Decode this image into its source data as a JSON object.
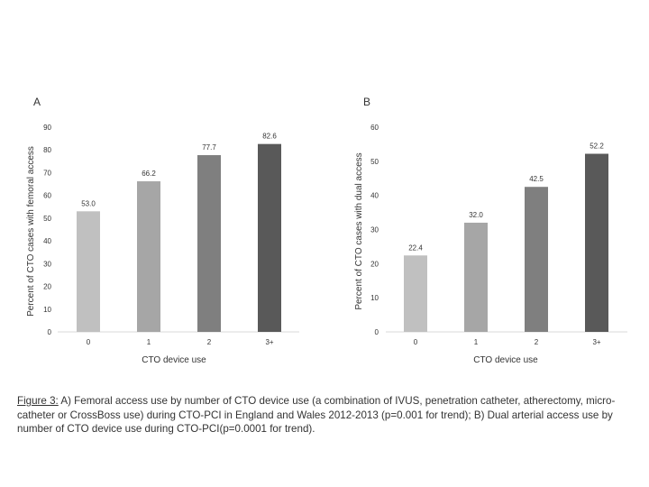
{
  "chart_data": [
    {
      "type": "bar",
      "panel_label": "A",
      "categories": [
        "0",
        "1",
        "2",
        "3+"
      ],
      "values": [
        53.0,
        66.2,
        77.7,
        82.6
      ],
      "value_labels": [
        "53.0",
        "66.2",
        "77.7",
        "82.6"
      ],
      "colors": [
        "#c0c0c0",
        "#a6a6a6",
        "#7f7f7f",
        "#595959"
      ],
      "xlabel": "CTO device use",
      "ylabel": "Percent of CTO cases with femoral access",
      "ylim": [
        0,
        90
      ],
      "yticks": [
        0,
        10,
        20,
        30,
        40,
        50,
        60,
        70,
        80,
        90
      ],
      "grid": false
    },
    {
      "type": "bar",
      "panel_label": "B",
      "categories": [
        "0",
        "1",
        "2",
        "3+"
      ],
      "values": [
        22.4,
        32.0,
        42.5,
        52.2
      ],
      "value_labels": [
        "22.4",
        "32.0",
        "42.5",
        "52.2"
      ],
      "colors": [
        "#c0c0c0",
        "#a6a6a6",
        "#7f7f7f",
        "#595959"
      ],
      "xlabel": "CTO device use",
      "ylabel": "Percent of CTO cases with dual access",
      "ylim": [
        0,
        60
      ],
      "yticks": [
        0,
        10,
        20,
        30,
        40,
        50,
        60
      ],
      "grid": false
    }
  ],
  "caption": {
    "figure_label": "Figure 3:",
    "text": " A) Femoral access use by number of CTO device use (a combination of IVUS, penetration catheter, atherectomy, micro-catheter or CrossBoss use) during CTO-PCI in England and Wales 2012-2013 (p=0.001 for trend); B) Dual arterial access use by number of CTO device use during CTO-PCI(p=0.0001 for trend)."
  }
}
